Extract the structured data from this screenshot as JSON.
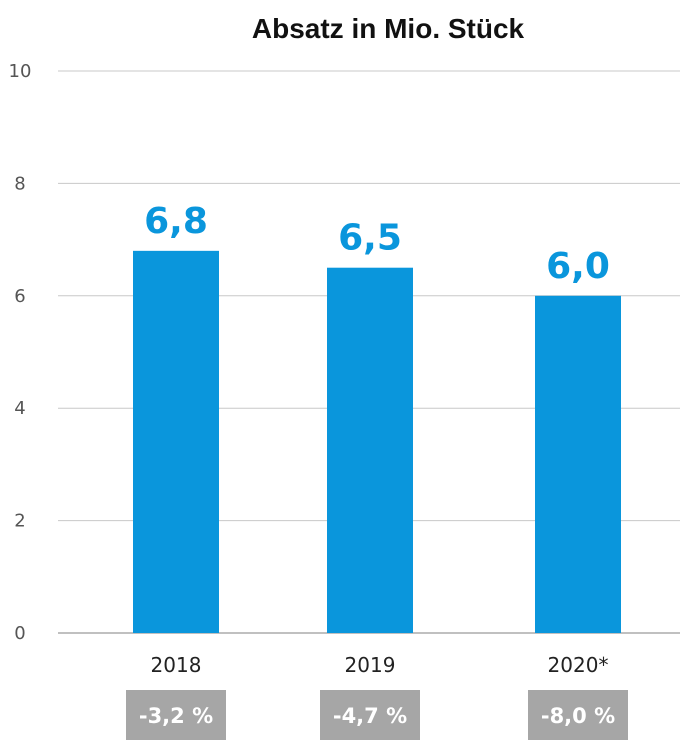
{
  "chart_data": {
    "type": "bar",
    "title": "Absatz in Mio. Stück",
    "categories": [
      "2018",
      "2019",
      "2020*"
    ],
    "values": [
      6.8,
      6.5,
      6.0
    ],
    "value_labels": [
      "6,8",
      "6,5",
      "6,0"
    ],
    "changes": [
      "-3,2 %",
      "-4,7 %",
      "-8,0 %"
    ],
    "ylim": [
      0,
      10
    ],
    "yticks": [
      0,
      2,
      4,
      6,
      8,
      10
    ],
    "grid": true,
    "bar_color": "#0a96dc",
    "badge_color": "#a6a6a6"
  }
}
